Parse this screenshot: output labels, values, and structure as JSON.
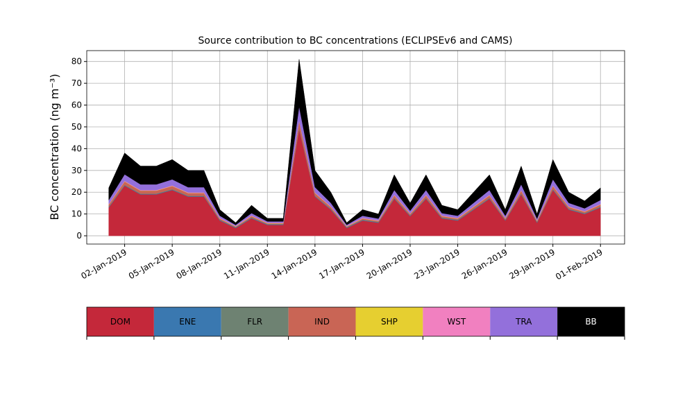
{
  "chart_data": {
    "type": "stacked_area",
    "title": "Source contribution to BC concentrations (ECLIPSEv6 and CAMS)",
    "y_label": "BC concentration (ng m⁻³)",
    "x": [
      "2019-01-01",
      "2019-01-02",
      "2019-01-03",
      "2019-01-04",
      "2019-01-05",
      "2019-01-06",
      "2019-01-07",
      "2019-01-08",
      "2019-01-09",
      "2019-01-10",
      "2019-01-11",
      "2019-01-12",
      "2019-01-13",
      "2019-01-14",
      "2019-01-15",
      "2019-01-16",
      "2019-01-17",
      "2019-01-18",
      "2019-01-19",
      "2019-01-20",
      "2019-01-21",
      "2019-01-22",
      "2019-01-23",
      "2019-01-24",
      "2019-01-25",
      "2019-01-26",
      "2019-01-27",
      "2019-01-28",
      "2019-01-29",
      "2019-01-30",
      "2019-01-31",
      "2019-02-01"
    ],
    "series": [
      {
        "name": "DOM",
        "color": "#c4283a",
        "values": [
          13,
          23,
          19,
          19,
          21,
          18,
          18,
          7,
          3.6,
          8,
          5,
          5,
          49,
          18,
          12,
          3.6,
          7,
          6,
          17,
          9,
          17,
          8,
          7,
          12,
          17,
          7,
          19,
          6,
          21,
          12,
          10,
          13
        ]
      },
      {
        "name": "ENE",
        "color": "#3a78b0",
        "values": [
          0.2,
          0.2,
          0.2,
          0.2,
          0.2,
          0.2,
          0.2,
          0.2,
          0.2,
          0.2,
          0.2,
          0.2,
          0.2,
          0.2,
          0.2,
          0.2,
          0.2,
          0.2,
          0.2,
          0.2,
          0.2,
          0.2,
          0.2,
          0.2,
          0.2,
          0.2,
          0.2,
          0.2,
          0.2,
          0.2,
          0.2,
          0.2
        ]
      },
      {
        "name": "FLR",
        "color": "#6e8272",
        "values": [
          0.2,
          0.2,
          0.2,
          0.2,
          0.2,
          0.2,
          0.2,
          0.2,
          0.2,
          0.2,
          0.2,
          0.2,
          0.2,
          0.2,
          0.2,
          0.2,
          0.2,
          0.2,
          0.2,
          0.2,
          0.2,
          0.2,
          0.2,
          0.2,
          0.2,
          0.2,
          0.2,
          0.2,
          0.2,
          0.2,
          0.2,
          0.2
        ]
      },
      {
        "name": "IND",
        "color": "#c96555",
        "values": [
          0.9,
          1.5,
          1.3,
          1.3,
          1.4,
          1.2,
          1.2,
          0.5,
          0.2,
          0.6,
          0.3,
          0.3,
          3.2,
          1.2,
          0.8,
          0.2,
          0.5,
          0.4,
          1.1,
          0.6,
          1.1,
          0.6,
          0.5,
          0.8,
          1.1,
          0.5,
          1.3,
          0.4,
          1.4,
          0.8,
          0.6,
          0.9
        ]
      },
      {
        "name": "SHP",
        "color": "#e6cf30",
        "values": [
          0.1,
          0.1,
          0.1,
          0.1,
          0.1,
          0.1,
          0.1,
          0.1,
          0.1,
          0.1,
          0.1,
          0.1,
          0.1,
          0.1,
          0.1,
          0.1,
          0.1,
          0.1,
          0.1,
          0.1,
          0.1,
          0.1,
          0.1,
          0.1,
          0.1,
          0.1,
          0.1,
          0.1,
          0.1,
          0.1,
          0.1,
          0.1
        ]
      },
      {
        "name": "WST",
        "color": "#f180c0",
        "values": [
          0.2,
          0.2,
          0.2,
          0.2,
          0.2,
          0.2,
          0.2,
          0.2,
          0.2,
          0.2,
          0.2,
          0.2,
          0.2,
          0.2,
          0.2,
          0.2,
          0.2,
          0.2,
          0.2,
          0.2,
          0.2,
          0.2,
          0.2,
          0.2,
          0.2,
          0.2,
          0.2,
          0.2,
          0.2,
          0.2,
          0.2,
          0.2
        ]
      },
      {
        "name": "TRA",
        "color": "#9370db",
        "values": [
          1.8,
          3,
          2.6,
          2.6,
          2.8,
          2.4,
          2.4,
          1,
          0.5,
          1.1,
          0.6,
          0.6,
          6.5,
          2.4,
          1.6,
          0.5,
          1,
          0.8,
          2.2,
          1.2,
          2.2,
          1.1,
          1,
          1.6,
          2.2,
          1,
          2.6,
          0.8,
          2.8,
          1.6,
          1.3,
          1.8
        ]
      },
      {
        "name": "BB",
        "color": "#000000",
        "values": [
          5.6,
          9.8,
          8.4,
          8.4,
          9.1,
          7.7,
          7.7,
          2.8,
          1.0,
          3.6,
          1.4,
          1.4,
          21.6,
          7.7,
          4.9,
          1.0,
          2.8,
          2.1,
          7.0,
          3.5,
          7.0,
          3.6,
          2.8,
          4.9,
          7.0,
          2.8,
          8.4,
          2.1,
          9.1,
          4.9,
          3.4,
          5.6
        ]
      }
    ],
    "xlim": [
      "2018-12-30T14:40",
      "2019-02-02T12:30"
    ],
    "xticks": [
      {
        "value": "2019-01-02",
        "label": "02-Jan-2019"
      },
      {
        "value": "2019-01-05",
        "label": "05-Jan-2019"
      },
      {
        "value": "2019-01-08",
        "label": "08-Jan-2019"
      },
      {
        "value": "2019-01-11",
        "label": "11-Jan-2019"
      },
      {
        "value": "2019-01-14",
        "label": "14-Jan-2019"
      },
      {
        "value": "2019-01-17",
        "label": "17-Jan-2019"
      },
      {
        "value": "2019-01-20",
        "label": "20-Jan-2019"
      },
      {
        "value": "2019-01-23",
        "label": "23-Jan-2019"
      },
      {
        "value": "2019-01-26",
        "label": "26-Jan-2019"
      },
      {
        "value": "2019-01-29",
        "label": "29-Jan-2019"
      },
      {
        "value": "2019-02-01",
        "label": "01-Feb-2019"
      }
    ],
    "ylim": [
      -3.8,
      85
    ],
    "yticks": [
      0,
      10,
      20,
      30,
      40,
      50,
      60,
      70,
      80
    ],
    "grid": true
  }
}
